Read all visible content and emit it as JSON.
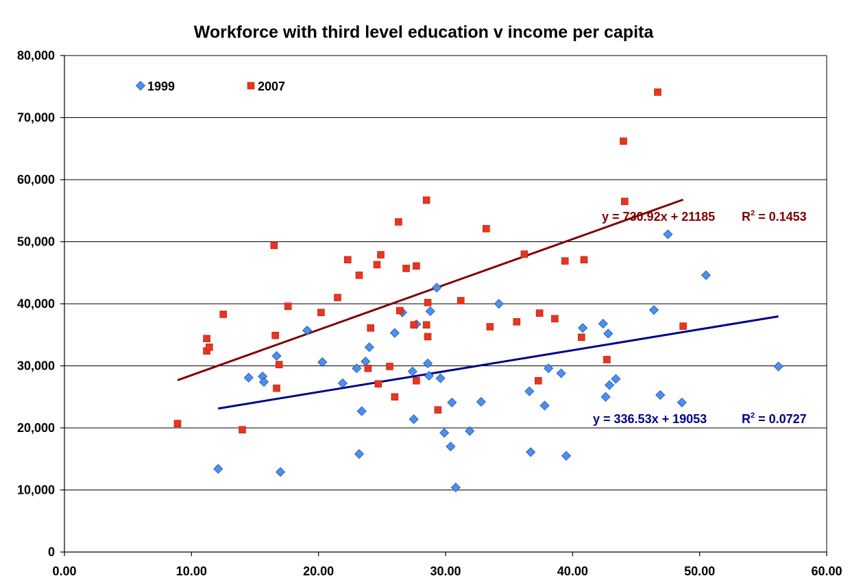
{
  "chart_data": {
    "type": "scatter",
    "title": "Workforce with third level education v income per capita",
    "xlabel": "",
    "ylabel": "",
    "xlim": [
      0,
      60
    ],
    "ylim": [
      0,
      80000
    ],
    "x_ticks": [
      "0.00",
      "10.00",
      "20.00",
      "30.00",
      "40.00",
      "50.00",
      "60.00"
    ],
    "y_ticks": [
      "0",
      "10,000",
      "20,000",
      "30,000",
      "40,000",
      "50,000",
      "60,000",
      "70,000",
      "80,000"
    ],
    "grid": "horizontal",
    "legend_position": "top-left",
    "series": [
      {
        "name": "1999",
        "marker": "diamond",
        "color": "#4a90f0",
        "points": [
          [
            12.1,
            13400
          ],
          [
            14.5,
            28100
          ],
          [
            15.6,
            28300
          ],
          [
            15.7,
            27400
          ],
          [
            16.7,
            31600
          ],
          [
            17.0,
            12900
          ],
          [
            19.1,
            35700
          ],
          [
            20.3,
            30600
          ],
          [
            21.9,
            27200
          ],
          [
            23.0,
            29600
          ],
          [
            23.2,
            15800
          ],
          [
            23.4,
            22700
          ],
          [
            23.7,
            30700
          ],
          [
            24.0,
            33000
          ],
          [
            26.0,
            35300
          ],
          [
            26.6,
            38600
          ],
          [
            27.4,
            29100
          ],
          [
            27.5,
            21400
          ],
          [
            27.7,
            36700
          ],
          [
            28.6,
            30400
          ],
          [
            28.7,
            28400
          ],
          [
            28.8,
            38800
          ],
          [
            29.3,
            42600
          ],
          [
            29.6,
            28000
          ],
          [
            29.9,
            19200
          ],
          [
            30.4,
            17000
          ],
          [
            30.5,
            24100
          ],
          [
            30.8,
            10400
          ],
          [
            31.9,
            19500
          ],
          [
            32.8,
            24200
          ],
          [
            34.2,
            40000
          ],
          [
            36.6,
            25900
          ],
          [
            36.7,
            16100
          ],
          [
            37.8,
            23600
          ],
          [
            38.1,
            29600
          ],
          [
            39.1,
            28800
          ],
          [
            39.5,
            15500
          ],
          [
            40.8,
            36100
          ],
          [
            42.4,
            36800
          ],
          [
            42.6,
            25000
          ],
          [
            42.8,
            35200
          ],
          [
            42.9,
            26900
          ],
          [
            43.4,
            27900
          ],
          [
            46.4,
            39000
          ],
          [
            46.9,
            25300
          ],
          [
            47.5,
            51200
          ],
          [
            48.6,
            24100
          ],
          [
            50.5,
            44600
          ],
          [
            56.2,
            29900
          ]
        ]
      },
      {
        "name": "2007",
        "marker": "square",
        "color": "#e8351e",
        "points": [
          [
            8.9,
            20700
          ],
          [
            11.2,
            32400
          ],
          [
            11.2,
            34400
          ],
          [
            11.4,
            33000
          ],
          [
            12.5,
            38300
          ],
          [
            14.0,
            19700
          ],
          [
            16.5,
            49400
          ],
          [
            16.6,
            34900
          ],
          [
            16.7,
            26400
          ],
          [
            16.9,
            30200
          ],
          [
            17.6,
            39600
          ],
          [
            20.2,
            38600
          ],
          [
            21.5,
            41000
          ],
          [
            22.3,
            47100
          ],
          [
            23.2,
            44600
          ],
          [
            23.9,
            29600
          ],
          [
            24.1,
            36100
          ],
          [
            24.6,
            46300
          ],
          [
            24.7,
            27100
          ],
          [
            24.9,
            47900
          ],
          [
            25.6,
            29900
          ],
          [
            26.0,
            25000
          ],
          [
            26.3,
            53200
          ],
          [
            26.4,
            38900
          ],
          [
            26.9,
            45700
          ],
          [
            27.5,
            36600
          ],
          [
            27.7,
            46100
          ],
          [
            27.7,
            27600
          ],
          [
            28.5,
            36600
          ],
          [
            28.5,
            56700
          ],
          [
            28.6,
            34700
          ],
          [
            28.6,
            40200
          ],
          [
            29.4,
            22900
          ],
          [
            31.2,
            40500
          ],
          [
            33.2,
            52100
          ],
          [
            33.5,
            36300
          ],
          [
            35.6,
            37100
          ],
          [
            36.2,
            48000
          ],
          [
            37.3,
            27600
          ],
          [
            37.4,
            38500
          ],
          [
            38.6,
            37600
          ],
          [
            39.4,
            46900
          ],
          [
            40.7,
            34600
          ],
          [
            40.9,
            47100
          ],
          [
            42.7,
            31000
          ],
          [
            44.0,
            66200
          ],
          [
            44.1,
            56500
          ],
          [
            46.7,
            74100
          ],
          [
            48.7,
            36400
          ]
        ]
      }
    ],
    "trendlines": [
      {
        "series": "2007",
        "slope": 730.92,
        "intercept": 21185,
        "x_range": [
          8.9,
          48.7
        ],
        "color": "#800000",
        "equation": "y = 730.92x + 21185",
        "r2_label": "R",
        "r2_exponent": "2",
        "r2_value": " = 0.1453"
      },
      {
        "series": "1999",
        "slope": 336.53,
        "intercept": 19053,
        "x_range": [
          12.1,
          56.2
        ],
        "color": "#00008b",
        "equation": "y = 336.53x + 19053",
        "r2_label": "R",
        "r2_exponent": "2",
        "r2_value": " = 0.0727"
      }
    ]
  }
}
